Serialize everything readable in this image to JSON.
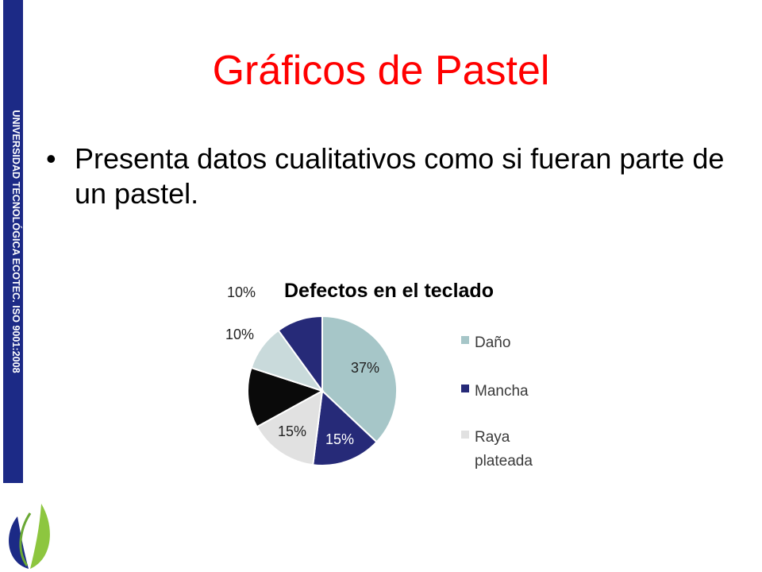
{
  "sidebar": {
    "text": "UNIVERSIDAD TECNOLÓGICA ECOTEC. ISO 9001:2008",
    "color": "#1c2a86"
  },
  "slide": {
    "title": "Gráficos de Pastel",
    "bullet": "Presenta datos cualitativos como si fueran parte de un pastel."
  },
  "chart_data": {
    "type": "pie",
    "title": "Defectos en el teclado",
    "slices": [
      {
        "name": "Daño",
        "value": 37,
        "label": "37%",
        "color": "#a6c6c8"
      },
      {
        "name": "Mancha",
        "value": 15,
        "label": "15%",
        "color": "#262a78"
      },
      {
        "name": "Raya plateada",
        "value": 15,
        "label": "15%",
        "color": "#e1e1e1"
      },
      {
        "name": "",
        "value": 13,
        "label": "",
        "color": "#0a0a0a"
      },
      {
        "name": "",
        "value": 10,
        "label": "10%",
        "color": "#c9dadb"
      },
      {
        "name": "",
        "value": 10,
        "label": "10%",
        "color": "#262a78"
      }
    ],
    "legend": [
      "Daño",
      "Mancha",
      [
        "Raya",
        "plateada"
      ]
    ],
    "legend_position": "right"
  }
}
